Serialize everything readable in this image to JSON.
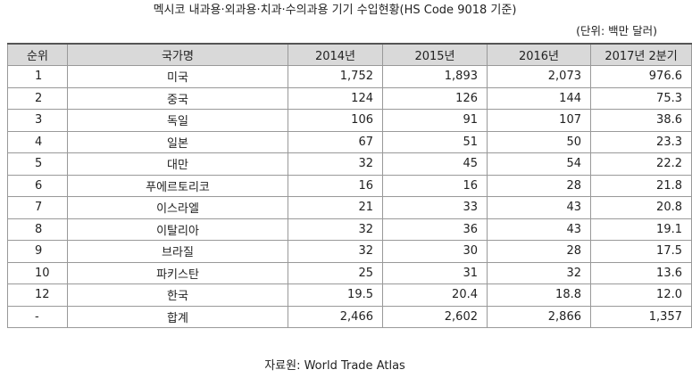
{
  "title": "멕시코 내과용·외과용·치과·수의과용 기기 수입현황(HS Code 9018 기준)",
  "unit": "(단위: 백만 달러)",
  "columns": [
    "순위",
    "국가명",
    "2014년",
    "2015년",
    "2016년",
    "2017년 2분기"
  ],
  "rows": [
    [
      "1",
      "미국",
      "1,752",
      "1,893",
      "2,073",
      "976.6"
    ],
    [
      "2",
      "중국",
      "124",
      "126",
      "144",
      "75.3"
    ],
    [
      "3",
      "독일",
      "106",
      "91",
      "107",
      "38.6"
    ],
    [
      "4",
      "일본",
      "67",
      "51",
      "50",
      "23.3"
    ],
    [
      "5",
      "대만",
      "32",
      "45",
      "54",
      "22.2"
    ],
    [
      "6",
      "푸에르토리코",
      "16",
      "16",
      "28",
      "21.8"
    ],
    [
      "7",
      "이스라엘",
      "21",
      "33",
      "43",
      "20.8"
    ],
    [
      "8",
      "이탈리아",
      "32",
      "36",
      "43",
      "19.1"
    ],
    [
      "9",
      "브라질",
      "32",
      "30",
      "28",
      "17.5"
    ],
    [
      "10",
      "파키스탄",
      "25",
      "31",
      "32",
      "13.6"
    ],
    [
      "12",
      "한국",
      "19.5",
      "20.4",
      "18.8",
      "12.0"
    ],
    [
      "-",
      "합계",
      "2,466",
      "2,602",
      "2,866",
      "1,357"
    ]
  ],
  "source": "자료원: World Trade Atlas"
}
